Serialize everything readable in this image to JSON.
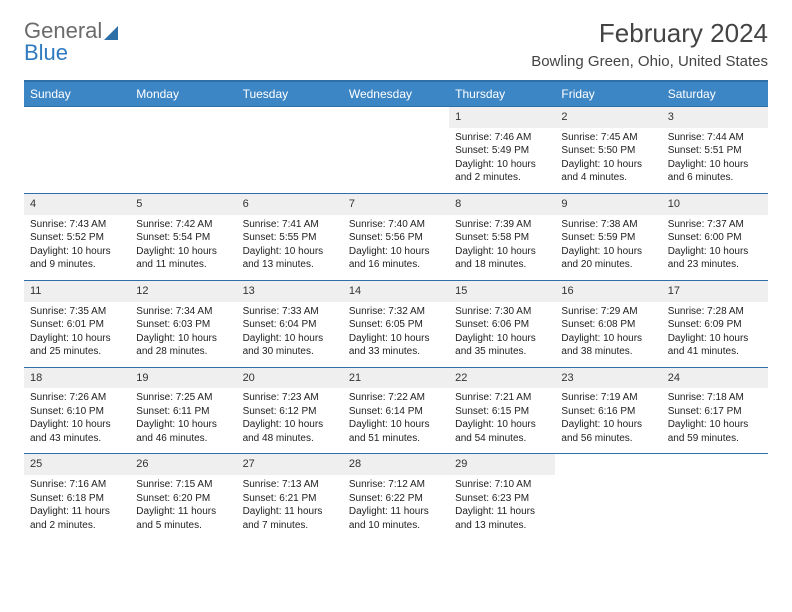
{
  "brand": {
    "part1": "General",
    "part2": "Blue"
  },
  "title": "February 2024",
  "location": "Bowling Green, Ohio, United States",
  "colors": {
    "header_bg": "#3d86c6",
    "rule": "#2f6fa8",
    "daynum_bg": "#efefef"
  },
  "weekdays": [
    "Sunday",
    "Monday",
    "Tuesday",
    "Wednesday",
    "Thursday",
    "Friday",
    "Saturday"
  ],
  "weeks": [
    [
      null,
      null,
      null,
      null,
      {
        "n": "1",
        "sr": "Sunrise: 7:46 AM",
        "ss": "Sunset: 5:49 PM",
        "dl1": "Daylight: 10 hours",
        "dl2": "and 2 minutes."
      },
      {
        "n": "2",
        "sr": "Sunrise: 7:45 AM",
        "ss": "Sunset: 5:50 PM",
        "dl1": "Daylight: 10 hours",
        "dl2": "and 4 minutes."
      },
      {
        "n": "3",
        "sr": "Sunrise: 7:44 AM",
        "ss": "Sunset: 5:51 PM",
        "dl1": "Daylight: 10 hours",
        "dl2": "and 6 minutes."
      }
    ],
    [
      {
        "n": "4",
        "sr": "Sunrise: 7:43 AM",
        "ss": "Sunset: 5:52 PM",
        "dl1": "Daylight: 10 hours",
        "dl2": "and 9 minutes."
      },
      {
        "n": "5",
        "sr": "Sunrise: 7:42 AM",
        "ss": "Sunset: 5:54 PM",
        "dl1": "Daylight: 10 hours",
        "dl2": "and 11 minutes."
      },
      {
        "n": "6",
        "sr": "Sunrise: 7:41 AM",
        "ss": "Sunset: 5:55 PM",
        "dl1": "Daylight: 10 hours",
        "dl2": "and 13 minutes."
      },
      {
        "n": "7",
        "sr": "Sunrise: 7:40 AM",
        "ss": "Sunset: 5:56 PM",
        "dl1": "Daylight: 10 hours",
        "dl2": "and 16 minutes."
      },
      {
        "n": "8",
        "sr": "Sunrise: 7:39 AM",
        "ss": "Sunset: 5:58 PM",
        "dl1": "Daylight: 10 hours",
        "dl2": "and 18 minutes."
      },
      {
        "n": "9",
        "sr": "Sunrise: 7:38 AM",
        "ss": "Sunset: 5:59 PM",
        "dl1": "Daylight: 10 hours",
        "dl2": "and 20 minutes."
      },
      {
        "n": "10",
        "sr": "Sunrise: 7:37 AM",
        "ss": "Sunset: 6:00 PM",
        "dl1": "Daylight: 10 hours",
        "dl2": "and 23 minutes."
      }
    ],
    [
      {
        "n": "11",
        "sr": "Sunrise: 7:35 AM",
        "ss": "Sunset: 6:01 PM",
        "dl1": "Daylight: 10 hours",
        "dl2": "and 25 minutes."
      },
      {
        "n": "12",
        "sr": "Sunrise: 7:34 AM",
        "ss": "Sunset: 6:03 PM",
        "dl1": "Daylight: 10 hours",
        "dl2": "and 28 minutes."
      },
      {
        "n": "13",
        "sr": "Sunrise: 7:33 AM",
        "ss": "Sunset: 6:04 PM",
        "dl1": "Daylight: 10 hours",
        "dl2": "and 30 minutes."
      },
      {
        "n": "14",
        "sr": "Sunrise: 7:32 AM",
        "ss": "Sunset: 6:05 PM",
        "dl1": "Daylight: 10 hours",
        "dl2": "and 33 minutes."
      },
      {
        "n": "15",
        "sr": "Sunrise: 7:30 AM",
        "ss": "Sunset: 6:06 PM",
        "dl1": "Daylight: 10 hours",
        "dl2": "and 35 minutes."
      },
      {
        "n": "16",
        "sr": "Sunrise: 7:29 AM",
        "ss": "Sunset: 6:08 PM",
        "dl1": "Daylight: 10 hours",
        "dl2": "and 38 minutes."
      },
      {
        "n": "17",
        "sr": "Sunrise: 7:28 AM",
        "ss": "Sunset: 6:09 PM",
        "dl1": "Daylight: 10 hours",
        "dl2": "and 41 minutes."
      }
    ],
    [
      {
        "n": "18",
        "sr": "Sunrise: 7:26 AM",
        "ss": "Sunset: 6:10 PM",
        "dl1": "Daylight: 10 hours",
        "dl2": "and 43 minutes."
      },
      {
        "n": "19",
        "sr": "Sunrise: 7:25 AM",
        "ss": "Sunset: 6:11 PM",
        "dl1": "Daylight: 10 hours",
        "dl2": "and 46 minutes."
      },
      {
        "n": "20",
        "sr": "Sunrise: 7:23 AM",
        "ss": "Sunset: 6:12 PM",
        "dl1": "Daylight: 10 hours",
        "dl2": "and 48 minutes."
      },
      {
        "n": "21",
        "sr": "Sunrise: 7:22 AM",
        "ss": "Sunset: 6:14 PM",
        "dl1": "Daylight: 10 hours",
        "dl2": "and 51 minutes."
      },
      {
        "n": "22",
        "sr": "Sunrise: 7:21 AM",
        "ss": "Sunset: 6:15 PM",
        "dl1": "Daylight: 10 hours",
        "dl2": "and 54 minutes."
      },
      {
        "n": "23",
        "sr": "Sunrise: 7:19 AM",
        "ss": "Sunset: 6:16 PM",
        "dl1": "Daylight: 10 hours",
        "dl2": "and 56 minutes."
      },
      {
        "n": "24",
        "sr": "Sunrise: 7:18 AM",
        "ss": "Sunset: 6:17 PM",
        "dl1": "Daylight: 10 hours",
        "dl2": "and 59 minutes."
      }
    ],
    [
      {
        "n": "25",
        "sr": "Sunrise: 7:16 AM",
        "ss": "Sunset: 6:18 PM",
        "dl1": "Daylight: 11 hours",
        "dl2": "and 2 minutes."
      },
      {
        "n": "26",
        "sr": "Sunrise: 7:15 AM",
        "ss": "Sunset: 6:20 PM",
        "dl1": "Daylight: 11 hours",
        "dl2": "and 5 minutes."
      },
      {
        "n": "27",
        "sr": "Sunrise: 7:13 AM",
        "ss": "Sunset: 6:21 PM",
        "dl1": "Daylight: 11 hours",
        "dl2": "and 7 minutes."
      },
      {
        "n": "28",
        "sr": "Sunrise: 7:12 AM",
        "ss": "Sunset: 6:22 PM",
        "dl1": "Daylight: 11 hours",
        "dl2": "and 10 minutes."
      },
      {
        "n": "29",
        "sr": "Sunrise: 7:10 AM",
        "ss": "Sunset: 6:23 PM",
        "dl1": "Daylight: 11 hours",
        "dl2": "and 13 minutes."
      },
      null,
      null
    ]
  ]
}
